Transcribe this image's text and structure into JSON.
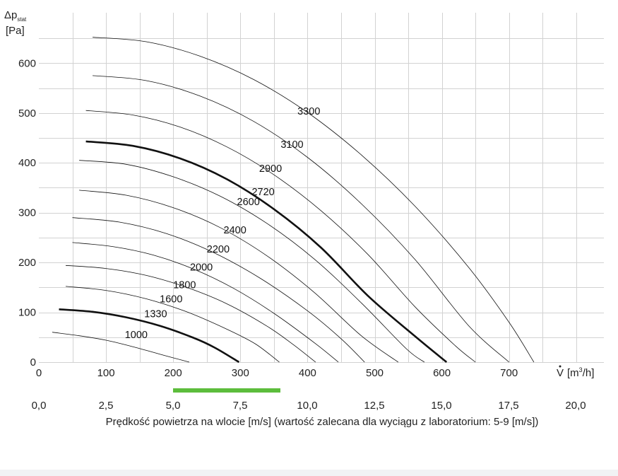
{
  "chart_data": [
    {
      "type": "line",
      "title": "",
      "ylabel_main": "Δp",
      "ylabel_sub": "stat",
      "ylabel_unit": "[Pa]",
      "xlabel_prefix": "V",
      "xlabel_unit": "[m",
      "xlabel_sup": "3",
      "xlabel_end": "/h]",
      "xlim": [
        0,
        840
      ],
      "ylim": [
        0,
        655
      ],
      "x_ticks": [
        0,
        100,
        200,
        300,
        400,
        500,
        600,
        700
      ],
      "x_tick_labels": [
        "0",
        "100",
        "200",
        "300",
        "400",
        "500",
        "600",
        "700"
      ],
      "y_ticks": [
        0,
        100,
        200,
        300,
        400,
        500,
        600
      ],
      "y_tick_labels": [
        "0",
        "100",
        "200",
        "300",
        "400",
        "500",
        "600"
      ],
      "grid": true,
      "series": [
        {
          "name": "1000",
          "highlight": false,
          "x": [
            20,
            60,
            100,
            140,
            180,
            224
          ],
          "y": [
            60,
            53,
            44,
            31,
            16,
            0
          ]
        },
        {
          "name": "1330",
          "highlight": true,
          "x": [
            30,
            80,
            130,
            180,
            230,
            262,
            298
          ],
          "y": [
            106,
            101,
            90,
            73,
            49,
            29,
            0
          ]
        },
        {
          "name": "1600",
          "highlight": false,
          "x": [
            40,
            100,
            160,
            220,
            280,
            323,
            358
          ],
          "y": [
            152,
            144,
            127,
            101,
            66,
            36,
            0
          ]
        },
        {
          "name": "1800",
          "highlight": false,
          "x": [
            40,
            100,
            160,
            220,
            280,
            340,
            379,
            412
          ],
          "y": [
            194,
            188,
            174,
            150,
            117,
            72,
            35,
            0
          ]
        },
        {
          "name": "2000",
          "highlight": false,
          "x": [
            50,
            110,
            170,
            230,
            290,
            350,
            412,
            446
          ],
          "y": [
            240,
            232,
            215,
            187,
            148,
            98,
            37,
            0
          ]
        },
        {
          "name": "2200",
          "highlight": false,
          "x": [
            50,
            120,
            190,
            260,
            330,
            400,
            450,
            485
          ],
          "y": [
            290,
            281,
            258,
            220,
            168,
            103,
            47,
            0
          ]
        },
        {
          "name": "2400",
          "highlight": false,
          "x": [
            60,
            130,
            200,
            270,
            340,
            410,
            480,
            535
          ],
          "y": [
            345,
            335,
            310,
            270,
            213,
            140,
            53,
            0
          ]
        },
        {
          "name": "2600",
          "highlight": false,
          "x": [
            60,
            130,
            200,
            270,
            340,
            410,
            480,
            547,
            574
          ],
          "y": [
            405,
            397,
            372,
            333,
            278,
            207,
            119,
            27,
            0
          ]
        },
        {
          "name": "2720",
          "highlight": true,
          "x": [
            70,
            140,
            210,
            280,
            350,
            420,
            490,
            560,
            607
          ],
          "y": [
            443,
            434,
            409,
            367,
            307,
            230,
            133,
            52,
            0
          ]
        },
        {
          "name": "2900",
          "highlight": false,
          "x": [
            70,
            140,
            210,
            280,
            350,
            420,
            490,
            560,
            620,
            650
          ],
          "y": [
            505,
            496,
            472,
            432,
            376,
            304,
            216,
            111,
            33,
            0
          ]
        },
        {
          "name": "3100",
          "highlight": false,
          "x": [
            80,
            160,
            240,
            320,
            400,
            480,
            560,
            640,
            700
          ],
          "y": [
            575,
            565,
            534,
            483,
            411,
            318,
            206,
            73,
            0
          ]
        },
        {
          "name": "3300",
          "highlight": false,
          "x": [
            80,
            160,
            240,
            320,
            400,
            480,
            560,
            640,
            700,
            737
          ],
          "y": [
            652,
            643,
            614,
            567,
            501,
            416,
            313,
            190,
            80,
            0
          ]
        }
      ]
    },
    {
      "type": "bar",
      "title": "",
      "xlabel": "Prędkość powietrza na wlocie [m/s] (wartość zalecana dla wyciągu z laboratorium: 5-9 [m/s])",
      "xlim": [
        0,
        21.8
      ],
      "x_ticks": [
        0,
        2.5,
        5,
        7.5,
        10,
        12.5,
        15,
        17.5,
        20
      ],
      "x_tick_labels": [
        "0,0",
        "2,5",
        "5,0",
        "7,5",
        "10,0",
        "12,5",
        "15,0",
        "17,5",
        "20,0"
      ],
      "recommended_range": [
        5,
        9
      ],
      "bar_color": "#5cbd3c"
    }
  ]
}
